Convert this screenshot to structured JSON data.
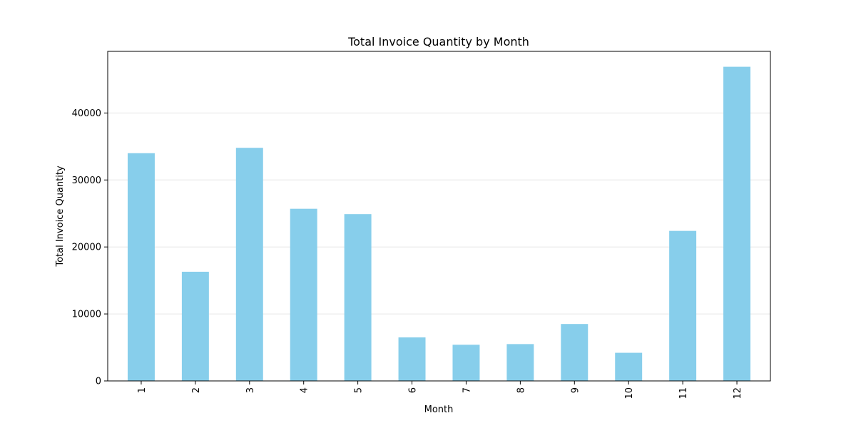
{
  "chart_data": {
    "type": "bar",
    "title": "Total Invoice Quantity by Month",
    "xlabel": "Month",
    "ylabel": "Total Invoice Quantity",
    "categories": [
      "1",
      "2",
      "3",
      "4",
      "5",
      "6",
      "7",
      "8",
      "9",
      "10",
      "11",
      "12"
    ],
    "values": [
      34000,
      16300,
      34800,
      25700,
      24900,
      6500,
      5400,
      5500,
      8500,
      4200,
      22400,
      46900
    ],
    "ylim": [
      0,
      49200
    ],
    "yticks": [
      0,
      10000,
      20000,
      30000,
      40000
    ],
    "ytick_labels": [
      "0",
      "10000",
      "20000",
      "30000",
      "40000"
    ],
    "grid": "horizontal",
    "bar_color": "#87CEEB",
    "legend": "none"
  }
}
